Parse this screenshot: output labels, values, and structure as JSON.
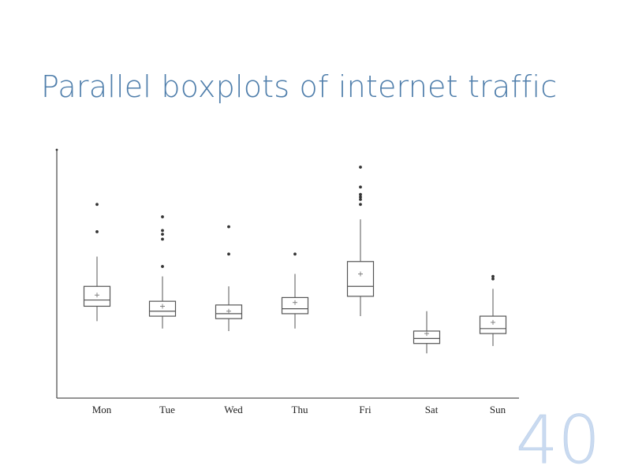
{
  "slide": {
    "title": "Parallel boxplots of internet traffic",
    "number": "40"
  },
  "chart_data": {
    "type": "boxplot",
    "title": "",
    "xlabel": "",
    "ylabel": "",
    "y_tick_labels": "none",
    "ylim": [
      0,
      100
    ],
    "grid": false,
    "categories": [
      "Mon",
      "Tue",
      "Wed",
      "Thu",
      "Fri",
      "Sat",
      "Sun"
    ],
    "boxes": [
      {
        "category": "Mon",
        "whisker_low": 31,
        "q1": 37,
        "median": 39.5,
        "q3": 45,
        "whisker_high": 57,
        "mean": 41.5,
        "outliers": [
          67,
          78
        ]
      },
      {
        "category": "Tue",
        "whisker_low": 28,
        "q1": 33,
        "median": 35,
        "q3": 39,
        "whisker_high": 49,
        "mean": 37,
        "outliers": [
          53,
          64,
          66,
          67.5,
          73
        ]
      },
      {
        "category": "Wed",
        "whisker_low": 27,
        "q1": 32,
        "median": 34,
        "q3": 37.5,
        "whisker_high": 45,
        "mean": 35,
        "outliers": [
          58,
          69
        ]
      },
      {
        "category": "Thu",
        "whisker_low": 28,
        "q1": 34,
        "median": 36,
        "q3": 40.5,
        "whisker_high": 50,
        "mean": 38.5,
        "outliers": [
          58
        ]
      },
      {
        "category": "Fri",
        "whisker_low": 33,
        "q1": 41,
        "median": 45,
        "q3": 55,
        "whisker_high": 72,
        "mean": 50,
        "outliers": [
          78,
          80,
          81,
          82,
          85,
          93
        ]
      },
      {
        "category": "Sat",
        "whisker_low": 18,
        "q1": 22,
        "median": 24,
        "q3": 27,
        "whisker_high": 35,
        "mean": 26,
        "outliers": []
      },
      {
        "category": "Sun",
        "whisker_low": 21,
        "q1": 26,
        "median": 28,
        "q3": 33,
        "whisker_high": 44,
        "mean": 30.5,
        "outliers": [
          48,
          49
        ]
      }
    ]
  }
}
